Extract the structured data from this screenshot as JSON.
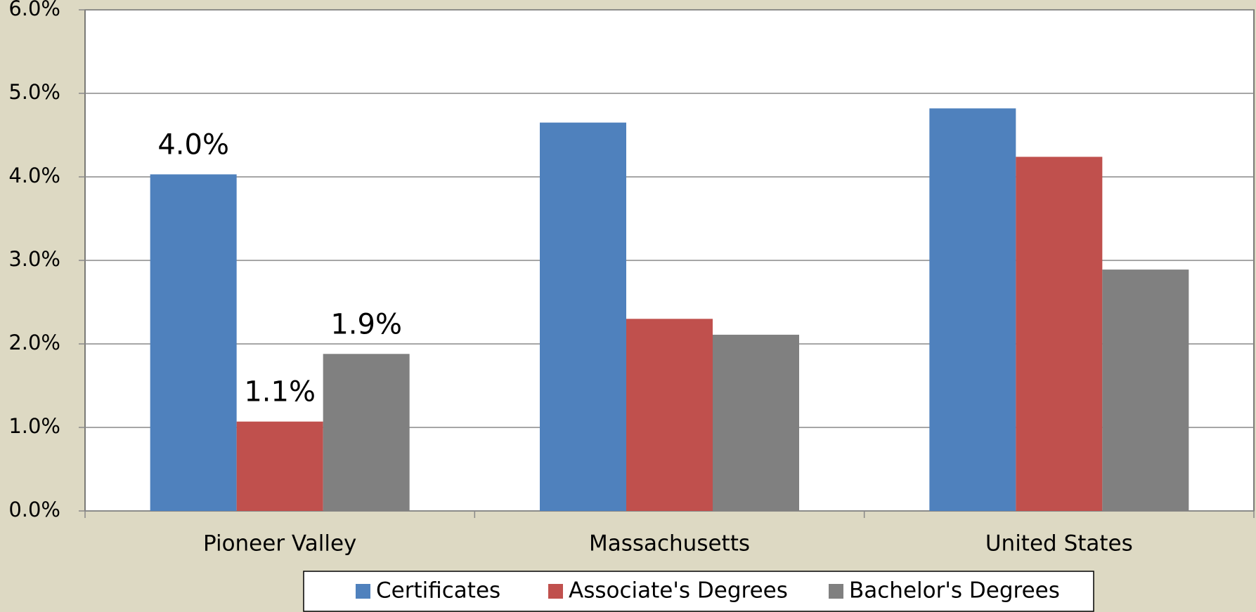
{
  "chart_data": {
    "type": "bar",
    "categories": [
      "Pioneer Valley",
      "Massachusetts",
      "United States"
    ],
    "series": [
      {
        "name": "Certificates",
        "color": "#4f81bd",
        "values": [
          4.03,
          4.65,
          4.82
        ],
        "value_labels": [
          "4.0%",
          null,
          null
        ]
      },
      {
        "name": "Associate's Degrees",
        "color": "#c0504d",
        "values": [
          1.07,
          2.3,
          4.24
        ],
        "value_labels": [
          "1.1%",
          null,
          null
        ]
      },
      {
        "name": "Bachelor's Degrees",
        "color": "#808080",
        "values": [
          1.88,
          2.11,
          2.89
        ],
        "value_labels": [
          "1.9%",
          null,
          null
        ]
      }
    ],
    "ylim": [
      0,
      6
    ],
    "yticks": [
      {
        "value": 0,
        "label": "0.0%"
      },
      {
        "value": 1,
        "label": "1.0%"
      },
      {
        "value": 2,
        "label": "2.0%"
      },
      {
        "value": 3,
        "label": "3.0%"
      },
      {
        "value": 4,
        "label": "4.0%"
      },
      {
        "value": 5,
        "label": "5.0%"
      },
      {
        "value": 6,
        "label": "6.0%"
      }
    ],
    "grid": true,
    "legend": "bottom"
  }
}
